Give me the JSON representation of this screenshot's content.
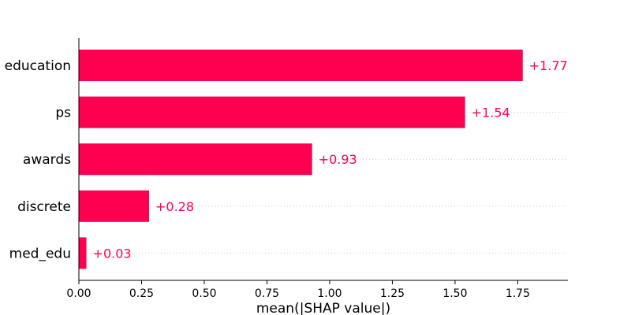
{
  "chart_data": {
    "type": "bar",
    "orientation": "horizontal",
    "categories": [
      "education",
      "ps",
      "awards",
      "discrete",
      "med_edu"
    ],
    "values": [
      1.77,
      1.54,
      0.93,
      0.28,
      0.03
    ],
    "value_labels": [
      "+1.77",
      "+1.54",
      "+0.93",
      "+0.28",
      "+0.03"
    ],
    "xlabel": "mean(|SHAP value|)",
    "ylabel": "",
    "xlim": [
      0,
      1.95
    ],
    "x_ticks": [
      "0.00",
      "0.25",
      "0.50",
      "0.75",
      "1.00",
      "1.25",
      "1.50",
      "1.75"
    ],
    "bar_color": "#ff0051",
    "grid": "dotted row guides"
  }
}
